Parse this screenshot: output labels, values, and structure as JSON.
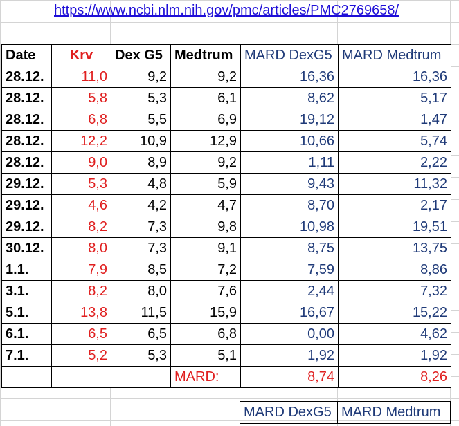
{
  "link": "https://www.ncbi.nlm.nih.gov/pmc/articles/PMC2769658/",
  "headers": [
    "Date",
    "Krv",
    "Dex G5",
    "Medtrum",
    "MARD DexG5",
    "MARD Medtrum"
  ],
  "rows": [
    [
      "28.12.",
      "11,0",
      "9,2",
      "9,2",
      "16,36",
      "16,36"
    ],
    [
      "28.12.",
      "5,8",
      "5,3",
      "6,1",
      "8,62",
      "5,17"
    ],
    [
      "28.12.",
      "6,8",
      "5,5",
      "6,9",
      "19,12",
      "1,47"
    ],
    [
      "28.12.",
      "12,2",
      "10,9",
      "12,9",
      "10,66",
      "5,74"
    ],
    [
      "28.12.",
      "9,0",
      "8,9",
      "9,2",
      "1,11",
      "2,22"
    ],
    [
      "29.12.",
      "5,3",
      "4,8",
      "5,9",
      "9,43",
      "11,32"
    ],
    [
      "29.12.",
      "4,6",
      "4,2",
      "4,7",
      "8,70",
      "2,17"
    ],
    [
      "29.12.",
      "8,2",
      "7,3",
      "9,8",
      "10,98",
      "19,51"
    ],
    [
      "30.12.",
      "8,0",
      "7,3",
      "9,1",
      "8,75",
      "13,75"
    ],
    [
      "1.1.",
      "7,9",
      "8,5",
      "7,2",
      "7,59",
      "8,86"
    ],
    [
      "3.1.",
      "8,2",
      "8,0",
      "7,6",
      "2,44",
      "7,32"
    ],
    [
      "5.1.",
      "13,8",
      "11,5",
      "15,9",
      "16,67",
      "15,22"
    ],
    [
      "6.1.",
      "6,5",
      "6,5",
      "6,8",
      "0,00",
      "4,62"
    ],
    [
      "7.1.",
      "5,2",
      "5,3",
      "5,1",
      "1,92",
      "1,92"
    ]
  ],
  "summary": {
    "label": "MARD:",
    "dex": "8,74",
    "medtrum": "8,26"
  },
  "footer": {
    "dex": "MARD DexG5",
    "medtrum": "MARD Medtrum"
  }
}
